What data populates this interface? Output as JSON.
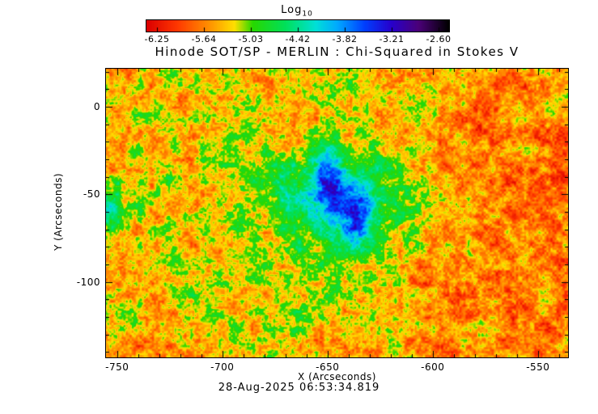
{
  "chart_data": {
    "type": "heatmap",
    "title": "Hinode SOT/SP - MERLIN : Chi-Squared in Stokes V",
    "xlabel": "X (Arcseconds)",
    "ylabel": "Y (Arcseconds)",
    "timestamp": "28-Aug-2025 06:53:34.819",
    "colorbar_label": {
      "base": "Log",
      "sub": "10"
    },
    "colorbar_ticks": [
      -6.25,
      -5.64,
      -5.03,
      -4.42,
      -3.82,
      -3.21,
      -2.6
    ],
    "value_range": [
      -6.39,
      -2.46
    ],
    "x_range": [
      -755.3,
      -535.7
    ],
    "y_range": [
      -143.0,
      21.7
    ],
    "x_ticks": [
      -750,
      -700,
      -650,
      -600,
      -550
    ],
    "y_ticks": [
      0,
      -50,
      -100
    ],
    "x_minor_step": 10,
    "y_minor_step": 10,
    "legend_position": "top-colorbar",
    "grid": false,
    "colormap_stops": [
      {
        "t": 0.0,
        "c": "#dc0000"
      },
      {
        "t": 0.1,
        "c": "#ff3800"
      },
      {
        "t": 0.2,
        "c": "#ff8c00"
      },
      {
        "t": 0.29,
        "c": "#ffe000"
      },
      {
        "t": 0.35,
        "c": "#28d800"
      },
      {
        "t": 0.46,
        "c": "#00e05c"
      },
      {
        "t": 0.56,
        "c": "#00e0d8"
      },
      {
        "t": 0.63,
        "c": "#00aaff"
      },
      {
        "t": 0.72,
        "c": "#0040ff"
      },
      {
        "t": 0.81,
        "c": "#2800cc"
      },
      {
        "t": 0.9,
        "c": "#4c0078"
      },
      {
        "t": 1.0,
        "c": "#000000"
      }
    ],
    "field": {
      "description": "log10 chi-squared granular field; orange-red quiet sun ~-5.6, green mottles ~-5.0, cyan/blue sunspot region near (-644,-55), dark blue penumbral arcs ~-3.0",
      "base": -5.55,
      "seed": 7,
      "noise": [
        {
          "scale": 2.5,
          "amp": 0.26
        },
        {
          "scale": 7,
          "amp": 0.32
        },
        {
          "scale": 20,
          "amp": 0.3
        }
      ],
      "blobs": [
        {
          "label": "sunspot-halo",
          "cx": -644,
          "cy": -55,
          "sx": 32,
          "sy": 28,
          "amp": 0.8
        },
        {
          "label": "sunspot-core-glow",
          "cx": -642,
          "cy": -53,
          "sx": 16,
          "sy": 16,
          "amp": 0.55
        },
        {
          "label": "penumbra-arc-west",
          "cx": -649,
          "cy": -40,
          "sx": 4.5,
          "sy": 12,
          "amp": 1.0
        },
        {
          "label": "penumbra-arc-east",
          "cx": -635,
          "cy": -66,
          "sx": 5,
          "sy": 13,
          "amp": 1.05
        },
        {
          "label": "penumbra-bridge",
          "cx": -642,
          "cy": -53,
          "sx": 4,
          "sy": 7,
          "amp": 0.5
        },
        {
          "label": "edge-patch-west",
          "cx": -754,
          "cy": -58,
          "sx": 4.5,
          "sy": 10,
          "amp": 1.05
        },
        {
          "label": "green-region-nw",
          "cx": -715,
          "cy": -15,
          "sx": 48,
          "sy": 40,
          "amp": 0.22
        },
        {
          "label": "green-band-south",
          "cx": -665,
          "cy": -124,
          "sx": 45,
          "sy": 16,
          "amp": 0.3
        },
        {
          "label": "green-cluster-top",
          "cx": -622,
          "cy": 5,
          "sx": 22,
          "sy": 14,
          "amp": 0.3
        },
        {
          "label": "green-patch-west",
          "cx": -735,
          "cy": -75,
          "sx": 30,
          "sy": 25,
          "amp": 0.15
        },
        {
          "label": "red-region-east",
          "cx": -572,
          "cy": -60,
          "sx": 55,
          "sy": 55,
          "amp": -0.18
        }
      ]
    }
  }
}
